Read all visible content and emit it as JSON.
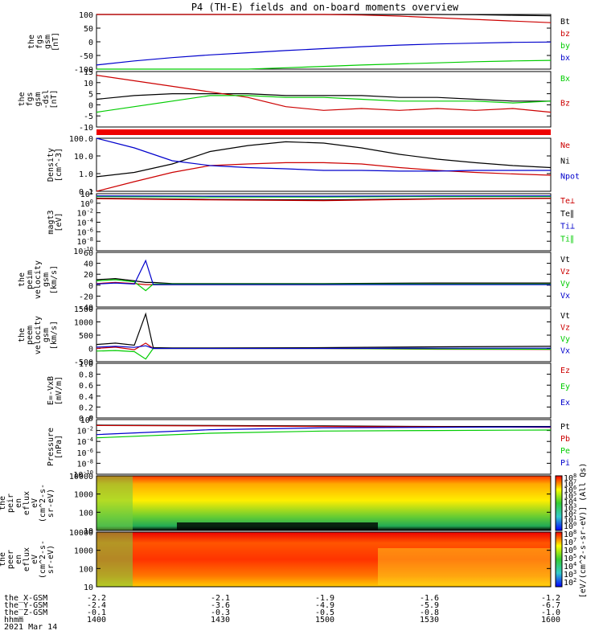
{
  "title": "P4 (TH-E) fields and on-board moments overview",
  "colors": {
    "black": "#000000",
    "red": "#cc0000",
    "green": "#00cc00",
    "blue": "#0000cc"
  },
  "chart_data": [
    {
      "id": "fgs_gsm",
      "type": "line",
      "ylabel": [
        "the",
        "fgs",
        "gsm",
        "[nT]"
      ],
      "yticks": [
        "100",
        "50",
        "0",
        "-50",
        "-100"
      ],
      "ylim": [
        -100,
        100
      ],
      "legend": [
        {
          "name": "Bt",
          "color": "black"
        },
        {
          "name": "bz",
          "color": "red"
        },
        {
          "name": "by",
          "color": "green"
        },
        {
          "name": "bx",
          "color": "blue"
        }
      ],
      "x": [
        1400,
        1410,
        1420,
        1430,
        1440,
        1450,
        1500,
        1510,
        1520,
        1530,
        1540,
        1550,
        1600
      ],
      "series": [
        {
          "name": "Bt",
          "color": "black",
          "values": [
            116,
            112,
            110,
            108,
            107,
            106,
            105,
            104,
            103,
            101,
            99,
            97,
            95
          ]
        },
        {
          "name": "bz",
          "color": "red",
          "values": [
            116,
            112,
            110,
            108,
            107,
            105,
            102,
            98,
            94,
            88,
            82,
            76,
            70
          ]
        },
        {
          "name": "by",
          "color": "green",
          "values": [
            -118,
            -115,
            -110,
            -105,
            -100,
            -95,
            -90,
            -85,
            -81,
            -77,
            -73,
            -70,
            -68
          ]
        },
        {
          "name": "bx",
          "color": "blue",
          "values": [
            -85,
            -70,
            -58,
            -48,
            -40,
            -32,
            -25,
            -18,
            -12,
            -8,
            -5,
            -2,
            -1
          ]
        }
      ]
    },
    {
      "id": "fgs_dsl",
      "type": "line",
      "ylabel": [
        "the",
        "fgs",
        "gsm",
        "-dsl",
        "[nT]"
      ],
      "yticks": [
        "15",
        "10",
        "5",
        "0",
        "-5",
        "-10"
      ],
      "ylim": [
        -15,
        15
      ],
      "legend": [
        {
          "name": "Bx",
          "color": "green"
        },
        {
          "name": "Bz",
          "color": "red"
        }
      ],
      "x": [
        1400,
        1410,
        1420,
        1430,
        1440,
        1450,
        1500,
        1510,
        1520,
        1530,
        1540,
        1550,
        1600
      ],
      "series": [
        {
          "name": "Bt",
          "color": "black",
          "values": [
            0,
            2,
            3,
            3,
            3,
            2,
            2,
            2,
            1,
            1,
            0,
            -1,
            -1
          ]
        },
        {
          "name": "Bz",
          "color": "red",
          "values": [
            13,
            10,
            7,
            4,
            1,
            -4,
            -6,
            -5,
            -6,
            -5,
            -6,
            -5,
            -7
          ]
        },
        {
          "name": "Bx",
          "color": "green",
          "values": [
            -7,
            -4,
            -1,
            2,
            2,
            1,
            1,
            0,
            -1,
            -1,
            -1,
            -2,
            -1
          ]
        }
      ]
    },
    {
      "id": "density",
      "type": "line",
      "log": true,
      "ylabel": [
        "Density",
        "[cm^-3]"
      ],
      "yticks": [
        "100.0",
        "10.0",
        "1.0",
        "0.1"
      ],
      "ylim": [
        0.1,
        200
      ],
      "legend": [
        {
          "name": "Ne",
          "color": "red"
        },
        {
          "name": "Ni",
          "color": "black"
        },
        {
          "name": "Npot",
          "color": "blue"
        }
      ],
      "x": [
        1400,
        1410,
        1420,
        1430,
        1440,
        1450,
        1500,
        1510,
        1520,
        1530,
        1540,
        1550,
        1600
      ],
      "series": [
        {
          "name": "Ni",
          "color": "black",
          "values": [
            0.8,
            1.5,
            5,
            30,
            70,
            120,
            100,
            50,
            20,
            10,
            6,
            4,
            3
          ]
        },
        {
          "name": "Ne",
          "color": "red",
          "values": [
            0.1,
            0.4,
            1.5,
            4,
            5,
            6,
            6,
            5,
            3,
            2,
            1.5,
            1.2,
            1
          ]
        },
        {
          "name": "Npot",
          "color": "blue",
          "values": [
            200,
            50,
            8,
            4,
            3,
            2.5,
            2,
            2,
            1.8,
            1.8,
            2,
            2,
            2
          ]
        }
      ]
    },
    {
      "id": "magt3",
      "type": "line",
      "log": true,
      "ylabel": [
        "magt3",
        "[eV]"
      ],
      "yticks": [
        "10^2",
        "10^0",
        "10^-2",
        "10^-4",
        "10^-6",
        "10^-8",
        "10^-10"
      ],
      "ylim": [
        1e-10,
        10000
      ],
      "legend": [
        {
          "name": "Te⊥",
          "color": "red"
        },
        {
          "name": "Te∥",
          "color": "black"
        },
        {
          "name": "Ti⊥",
          "color": "blue"
        },
        {
          "name": "Ti∥",
          "color": "green"
        }
      ],
      "x": [
        1400,
        1430,
        1500,
        1530,
        1600
      ],
      "series": [
        {
          "name": "Ti∥",
          "color": "green",
          "values": [
            2000,
            1500,
            1500,
            2000,
            2000
          ]
        },
        {
          "name": "Ti⊥",
          "color": "blue",
          "values": [
            3000,
            2500,
            2500,
            3000,
            3000
          ]
        },
        {
          "name": "Te∥",
          "color": "black",
          "values": [
            800,
            400,
            300,
            600,
            800
          ]
        },
        {
          "name": "Te⊥",
          "color": "red",
          "values": [
            600,
            300,
            200,
            500,
            700
          ]
        }
      ]
    },
    {
      "id": "peim_velocity",
      "type": "line",
      "ylabel": [
        "the",
        "peim",
        "velocity",
        "gsm",
        "[km/s]"
      ],
      "yticks": [
        "60",
        "40",
        "20",
        "0",
        "-20",
        "-40"
      ],
      "ylim": [
        -40,
        60
      ],
      "legend": [
        {
          "name": "Vt",
          "color": "black"
        },
        {
          "name": "Vz",
          "color": "red"
        },
        {
          "name": "Vy",
          "color": "green"
        },
        {
          "name": "Vx",
          "color": "blue"
        }
      ],
      "x": [
        1400,
        1405,
        1410,
        1413,
        1415,
        1420,
        1430,
        1500,
        1530,
        1600
      ],
      "series": [
        {
          "name": "Vt",
          "color": "black",
          "values": [
            10,
            12,
            8,
            5,
            5,
            3,
            3,
            3,
            4,
            4
          ]
        },
        {
          "name": "Vz",
          "color": "red",
          "values": [
            3,
            5,
            3,
            1,
            1,
            1,
            1,
            1,
            2,
            2
          ]
        },
        {
          "name": "Vy",
          "color": "green",
          "values": [
            8,
            10,
            6,
            -10,
            2,
            2,
            2,
            2,
            2,
            2
          ]
        },
        {
          "name": "Vx",
          "color": "blue",
          "values": [
            2,
            4,
            2,
            45,
            1,
            1,
            1,
            1,
            1,
            1
          ]
        }
      ]
    },
    {
      "id": "peem_velocity",
      "type": "line",
      "ylabel": [
        "the",
        "peem",
        "velocity",
        "gsm",
        "[km/s]"
      ],
      "yticks": [
        "1500",
        "1000",
        "500",
        "0",
        "-500"
      ],
      "ylim": [
        -500,
        1500
      ],
      "legend": [
        {
          "name": "Vt",
          "color": "black"
        },
        {
          "name": "Vz",
          "color": "red"
        },
        {
          "name": "Vy",
          "color": "green"
        },
        {
          "name": "Vx",
          "color": "blue"
        }
      ],
      "x": [
        1400,
        1405,
        1410,
        1413,
        1415,
        1420,
        1430,
        1500,
        1530,
        1600
      ],
      "series": [
        {
          "name": "Vt",
          "color": "black",
          "values": [
            150,
            200,
            120,
            1300,
            30,
            20,
            20,
            30,
            60,
            80
          ]
        },
        {
          "name": "Vz",
          "color": "red",
          "values": [
            0,
            50,
            -50,
            200,
            0,
            0,
            0,
            0,
            -30,
            -40
          ]
        },
        {
          "name": "Vy",
          "color": "green",
          "values": [
            -100,
            -80,
            -120,
            -400,
            0,
            0,
            0,
            0,
            -20,
            -30
          ]
        },
        {
          "name": "Vx",
          "color": "blue",
          "values": [
            50,
            80,
            40,
            100,
            0,
            0,
            0,
            0,
            10,
            10
          ]
        }
      ]
    },
    {
      "id": "e_field",
      "type": "line",
      "ylabel": [
        "E=-VxB",
        "[mV/m]"
      ],
      "yticks": [
        "1.0",
        "0.8",
        "0.6",
        "0.4",
        "0.2",
        "0.0"
      ],
      "ylim": [
        0,
        1
      ],
      "legend": [
        {
          "name": "Ez",
          "color": "red"
        },
        {
          "name": "Ey",
          "color": "green"
        },
        {
          "name": "Ex",
          "color": "blue"
        }
      ],
      "x": [],
      "series": []
    },
    {
      "id": "pressure",
      "type": "line",
      "log": true,
      "ylabel": [
        "Pressure",
        "[nPa]"
      ],
      "yticks": [
        "10^0",
        "10^-2",
        "10^-4",
        "10^-6",
        "10^-8",
        "10^-10"
      ],
      "ylim": [
        1e-10,
        100
      ],
      "legend": [
        {
          "name": "Pt",
          "color": "black"
        },
        {
          "name": "Pb",
          "color": "red"
        },
        {
          "name": "Pe",
          "color": "green"
        },
        {
          "name": "Pi",
          "color": "blue"
        }
      ],
      "x": [
        1400,
        1430,
        1500,
        1530,
        1600
      ],
      "series": [
        {
          "name": "Pt",
          "color": "black",
          "values": [
            6,
            5,
            4,
            3,
            3
          ]
        },
        {
          "name": "Pb",
          "color": "red",
          "values": [
            5,
            4,
            3,
            2.5,
            2
          ]
        },
        {
          "name": "Pe",
          "color": "green",
          "values": [
            0.01,
            0.1,
            0.3,
            0.4,
            0.5
          ]
        },
        {
          "name": "Pi",
          "color": "blue",
          "values": [
            0.05,
            0.6,
            1.5,
            2,
            2.5
          ]
        }
      ]
    },
    {
      "id": "peir_en_eflux",
      "type": "heatmap",
      "ylabel": [
        "the",
        "peir",
        "en",
        "eflux",
        "eV",
        "(cm^2-s-",
        "sr-eV)"
      ],
      "yticks": [
        "10000",
        "1000",
        "100",
        "10"
      ]
    },
    {
      "id": "peer_en_eflux",
      "type": "heatmap",
      "ylabel": [
        "the",
        "peer",
        "en",
        "eflux",
        "eV",
        "(cm^2-s-",
        "sr-eV)"
      ],
      "yticks": [
        "10000",
        "1000",
        "100",
        "10"
      ]
    }
  ],
  "colorbar": {
    "label": "[eV/(cm^2-s-sr-eV)] (All Qs)",
    "ticks_top": [
      "10^8",
      "10^7",
      "10^6",
      "10^5",
      "10^4",
      "10^3",
      "10^2",
      "10^1",
      "10^0"
    ],
    "ticks_bottom": [
      "10^8",
      "10^7",
      "10^6",
      "10^5",
      "10^4",
      "10^3",
      "10^2"
    ]
  },
  "xaxis": {
    "rows": [
      {
        "label": "the_X-GSM",
        "values": [
          "-2.2",
          "-2.1",
          "-1.9",
          "-1.6",
          "-1.2"
        ]
      },
      {
        "label": "the_Y-GSM",
        "values": [
          "-2.4",
          "-3.6",
          "-4.9",
          "-5.9",
          "-6.7"
        ]
      },
      {
        "label": "the_Z-GSM",
        "values": [
          "-0.1",
          "-0.3",
          "-0.5",
          "-0.8",
          "-1.0"
        ]
      },
      {
        "label": "hhmm",
        "values": [
          "1400",
          "1430",
          "1500",
          "1530",
          "1600"
        ]
      }
    ],
    "date": "2021 Mar 14"
  }
}
